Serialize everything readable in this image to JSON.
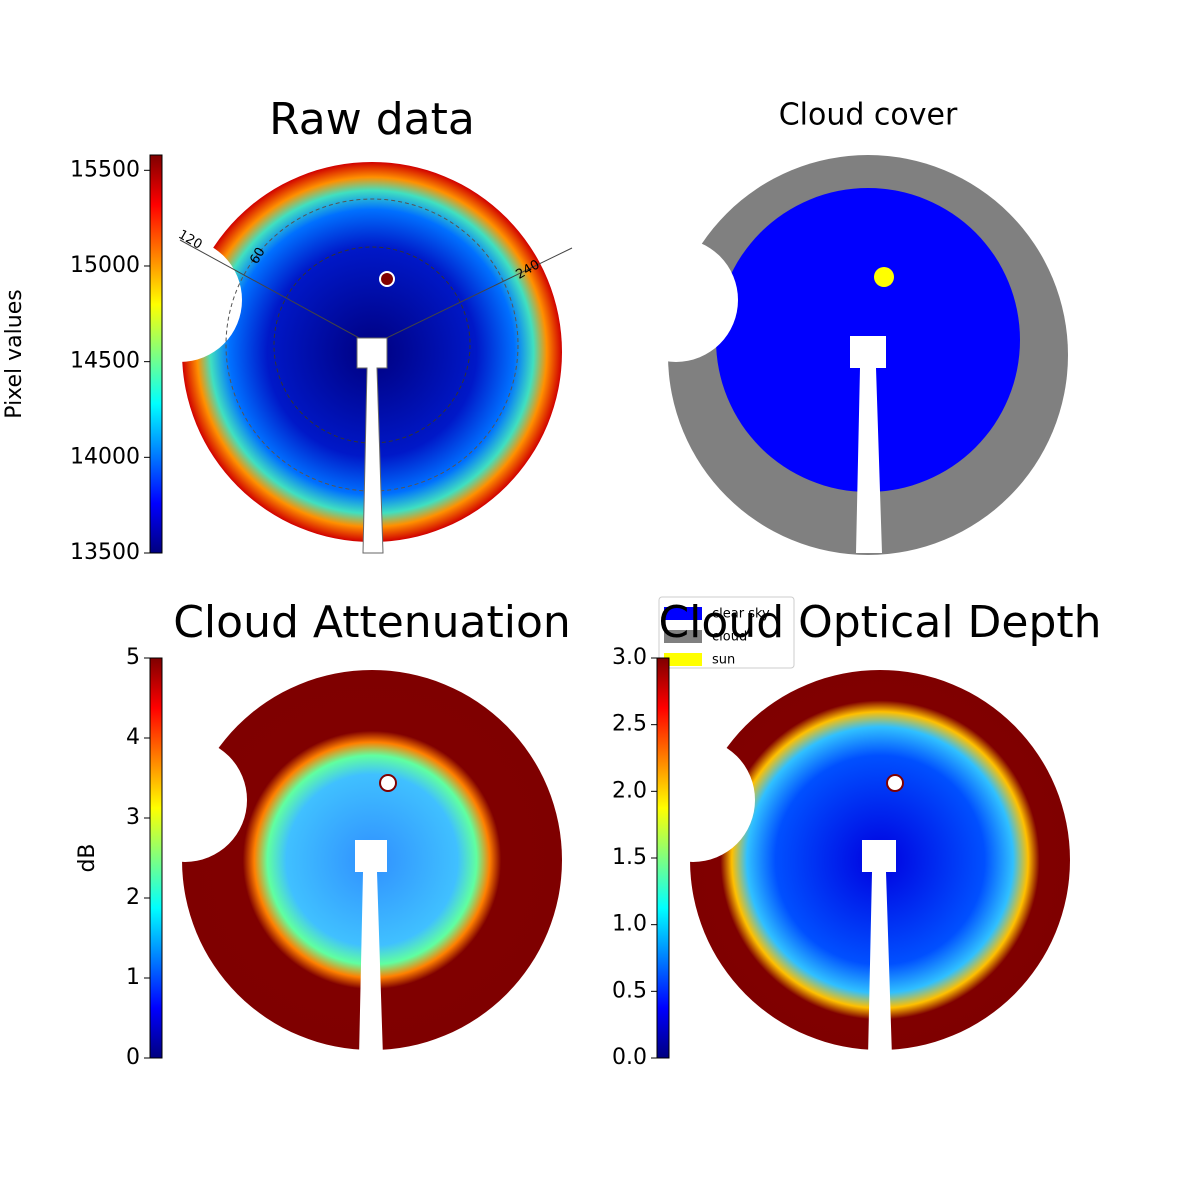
{
  "chart_data": [
    {
      "type": "image",
      "title": "Raw data",
      "colorbar_label": "Pixel values",
      "ylim": [
        13500,
        15580
      ],
      "yticks": [
        13500,
        14000,
        14500,
        15000,
        15500
      ],
      "annotations": [
        "120",
        "60",
        "240"
      ]
    },
    {
      "type": "image",
      "title": "Cloud cover",
      "legend": [
        {
          "name": "clear sky",
          "color": "#0000ff"
        },
        {
          "name": "cloud",
          "color": "#808080"
        },
        {
          "name": "sun",
          "color": "#ffff00"
        }
      ]
    },
    {
      "type": "image",
      "title": "Cloud Attenuation",
      "colorbar_label": "dB",
      "ylim": [
        0,
        5
      ],
      "yticks": [
        0,
        1,
        2,
        3,
        4,
        5
      ]
    },
    {
      "type": "image",
      "title": "Cloud Optical Depth",
      "ylim": [
        0,
        3
      ],
      "yticks": [
        {
          "value": 0,
          "label": "0.0"
        },
        {
          "value": 0.5,
          "label": "0.5"
        },
        {
          "value": 1,
          "label": "1.0"
        },
        {
          "value": 1.5,
          "label": "1.5"
        },
        {
          "value": 2,
          "label": "2.0"
        },
        {
          "value": 2.5,
          "label": "2.5"
        },
        {
          "value": 3,
          "label": "3.0"
        }
      ]
    }
  ]
}
